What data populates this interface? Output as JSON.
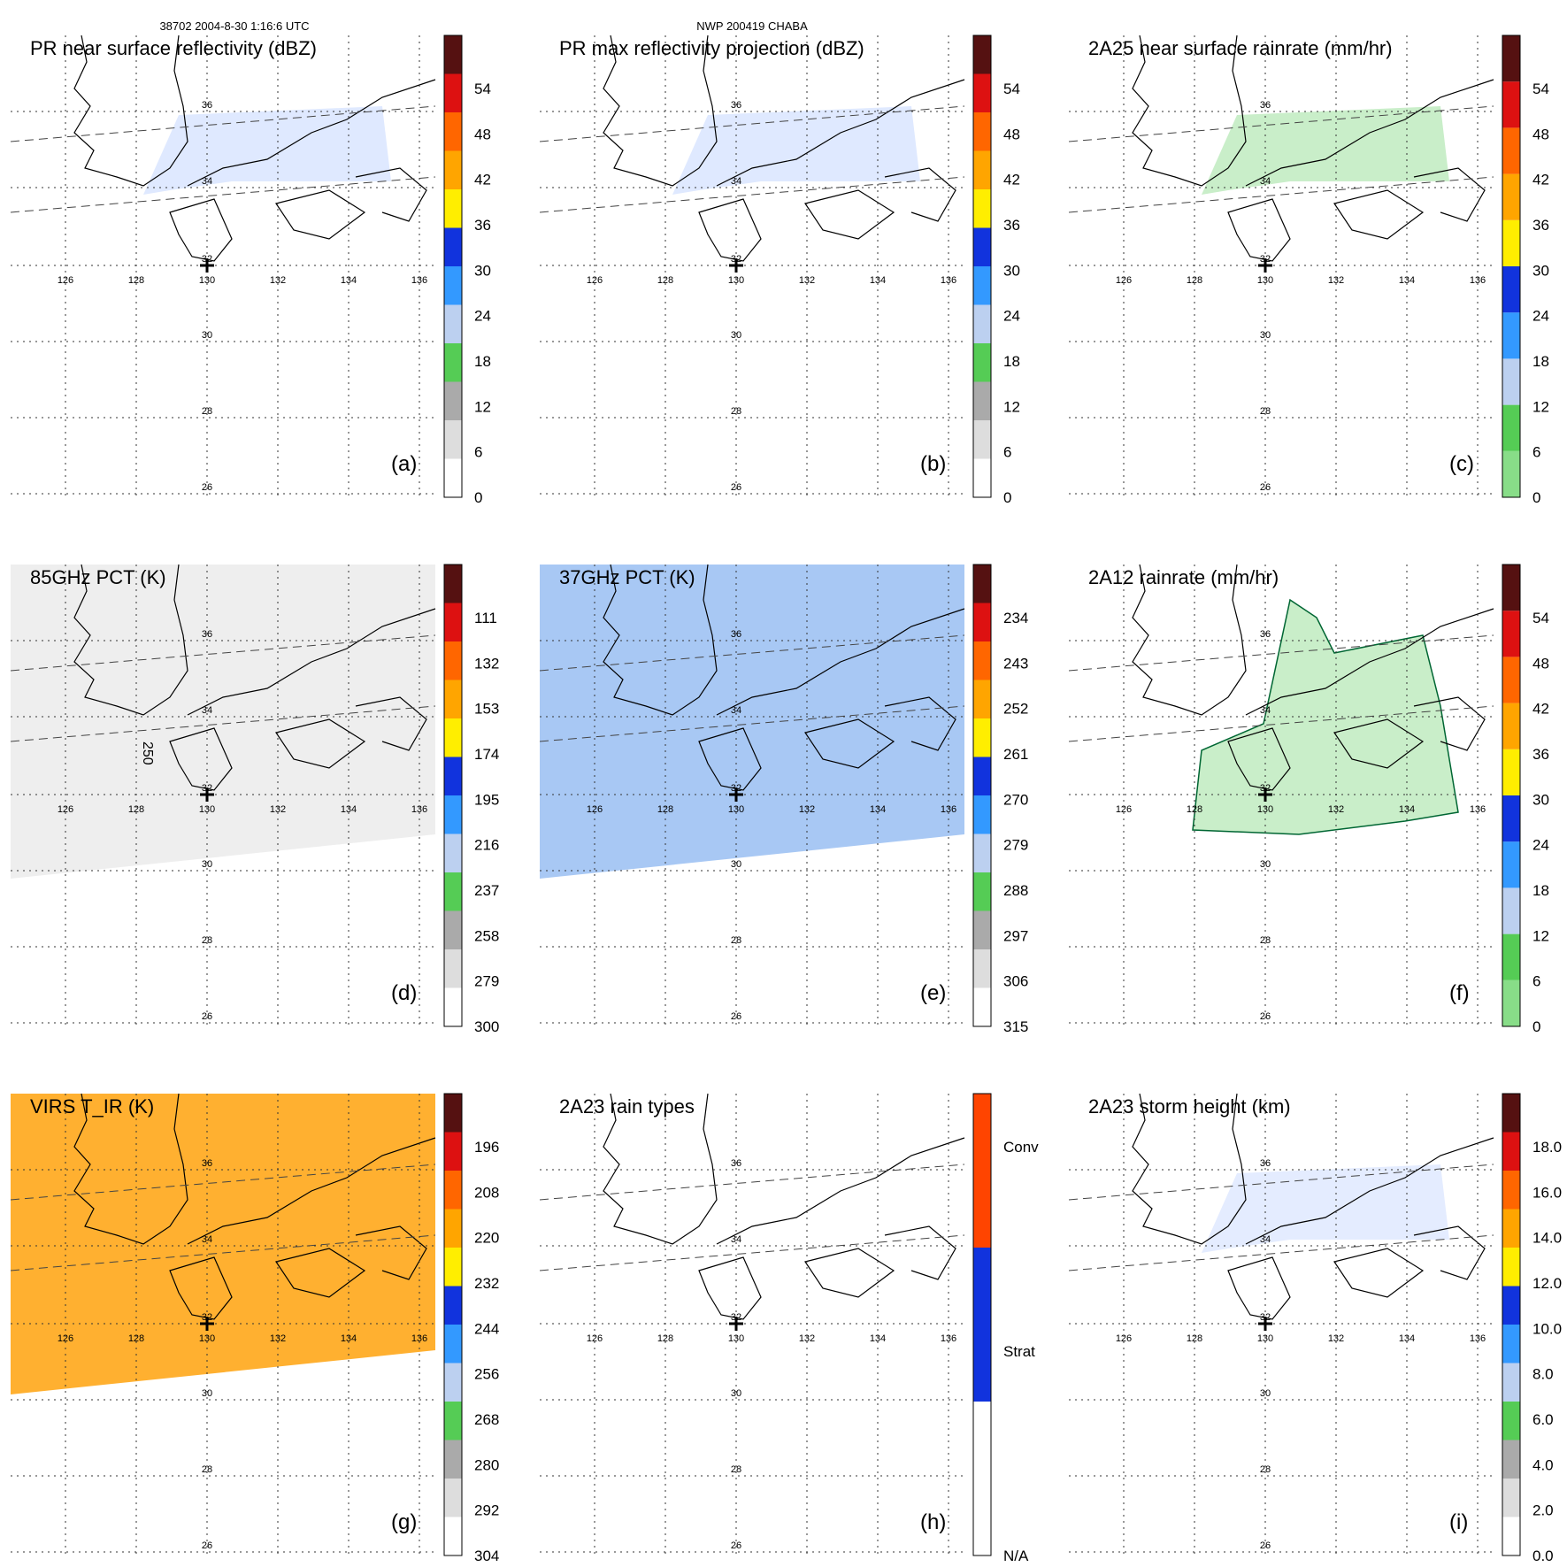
{
  "header": {
    "left": "38702 2004-8-30 1:16:6 UTC",
    "center": "NWP 200419 CHABA"
  },
  "grid": {
    "lon_labels": [
      "126",
      "128",
      "130",
      "132",
      "134",
      "136"
    ],
    "lat_labels": [
      "36",
      "34",
      "32",
      "30",
      "28",
      "26"
    ]
  },
  "panels": [
    {
      "id": "a",
      "title": "PR near surface reflectivity (dBZ)",
      "label": "(a)",
      "colorbar": [
        "0",
        "6",
        "12",
        "18",
        "24",
        "30",
        "36",
        "42",
        "48",
        "54"
      ],
      "colors": [
        "#ffffff",
        "#dddddd",
        "#aaaaaa",
        "#55cc55",
        "#bcd0f0",
        "#3399ff",
        "#1133dd",
        "#ffee00",
        "#ffa500",
        "#ff6600",
        "#dd1111",
        "#551111"
      ]
    },
    {
      "id": "b",
      "title": "PR max reflectivity projection (dBZ)",
      "label": "(b)",
      "colorbar": [
        "0",
        "6",
        "12",
        "18",
        "24",
        "30",
        "36",
        "42",
        "48",
        "54"
      ],
      "colors": [
        "#ffffff",
        "#dddddd",
        "#aaaaaa",
        "#55cc55",
        "#bcd0f0",
        "#3399ff",
        "#1133dd",
        "#ffee00",
        "#ffa500",
        "#ff6600",
        "#dd1111",
        "#551111"
      ]
    },
    {
      "id": "c",
      "title": "2A25 near surface rainrate (mm/hr)",
      "label": "(c)",
      "colorbar": [
        "0",
        "6",
        "12",
        "18",
        "24",
        "30",
        "36",
        "42",
        "48",
        "54"
      ],
      "colors": [
        "#88dd88",
        "#55cc55",
        "#bcd0f0",
        "#3399ff",
        "#1133dd",
        "#ffee00",
        "#ffa500",
        "#ff6600",
        "#dd1111",
        "#551111"
      ]
    },
    {
      "id": "d",
      "title": "85GHz PCT (K)",
      "label": "(d)",
      "colorbar": [
        "300",
        "279",
        "258",
        "237",
        "216",
        "195",
        "174",
        "153",
        "132",
        "111"
      ],
      "colors": [
        "#ffffff",
        "#dddddd",
        "#aaaaaa",
        "#55cc55",
        "#bcd0f0",
        "#3399ff",
        "#1133dd",
        "#ffee00",
        "#ffa500",
        "#ff6600",
        "#dd1111",
        "#551111"
      ]
    },
    {
      "id": "e",
      "title": "37GHz PCT (K)",
      "label": "(e)",
      "colorbar": [
        "315",
        "306",
        "297",
        "288",
        "279",
        "270",
        "261",
        "252",
        "243",
        "234"
      ],
      "colors": [
        "#ffffff",
        "#dddddd",
        "#aaaaaa",
        "#55cc55",
        "#bcd0f0",
        "#3399ff",
        "#1133dd",
        "#ffee00",
        "#ffa500",
        "#ff6600",
        "#dd1111",
        "#551111"
      ]
    },
    {
      "id": "f",
      "title": "2A12 rainrate (mm/hr)",
      "label": "(f)",
      "colorbar": [
        "0",
        "6",
        "12",
        "18",
        "24",
        "30",
        "36",
        "42",
        "48",
        "54"
      ],
      "colors": [
        "#88dd88",
        "#55cc55",
        "#bcd0f0",
        "#3399ff",
        "#1133dd",
        "#ffee00",
        "#ffa500",
        "#ff6600",
        "#dd1111",
        "#551111"
      ]
    },
    {
      "id": "g",
      "title": "VIRS T_IR (K)",
      "label": "(g)",
      "colorbar": [
        "304",
        "292",
        "280",
        "268",
        "256",
        "244",
        "232",
        "220",
        "208",
        "196"
      ],
      "colors": [
        "#ffffff",
        "#dddddd",
        "#aaaaaa",
        "#55cc55",
        "#bcd0f0",
        "#3399ff",
        "#1133dd",
        "#ffee00",
        "#ffa500",
        "#ff6600",
        "#dd1111",
        "#551111"
      ]
    },
    {
      "id": "h",
      "title": "2A23 rain types",
      "label": "(h)",
      "colorbar": [
        "N/A",
        "Strat",
        "Conv"
      ],
      "colors": [
        "#ffffff",
        "#1133dd",
        "#ff4400"
      ]
    },
    {
      "id": "i",
      "title": "2A23 storm height (km)",
      "label": "(i)",
      "colorbar": [
        "0.0",
        "2.0",
        "4.0",
        "6.0",
        "8.0",
        "10.0",
        "12.0",
        "14.0",
        "16.0",
        "18.0"
      ],
      "colors": [
        "#ffffff",
        "#dddddd",
        "#aaaaaa",
        "#55cc55",
        "#bcd0f0",
        "#3399ff",
        "#1133dd",
        "#ffee00",
        "#ffa500",
        "#ff6600",
        "#dd1111",
        "#551111"
      ]
    }
  ],
  "annotations": {
    "contour_label": "250"
  }
}
